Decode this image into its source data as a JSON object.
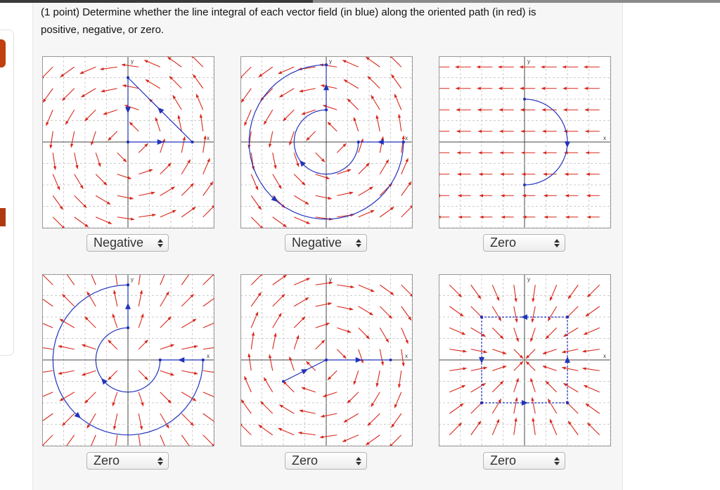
{
  "problem": {
    "text_line1": "(1 point) Determine whether the line integral of each vector field (in blue) along the oriented path (in red) is",
    "text_line2": "positive, negative, or zero."
  },
  "panels": [
    {
      "answer": "Negative",
      "x_label": "x",
      "y_label": "y"
    },
    {
      "answer": "Negative",
      "x_label": "x",
      "y_label": "y"
    },
    {
      "answer": "Zero",
      "x_label": "x",
      "y_label": "y"
    },
    {
      "answer": "Zero",
      "x_label": "x",
      "y_label": "y"
    },
    {
      "answer": "Zero",
      "x_label": "x",
      "y_label": "y"
    },
    {
      "answer": "Zero",
      "x_label": "x",
      "y_label": "y"
    }
  ]
}
